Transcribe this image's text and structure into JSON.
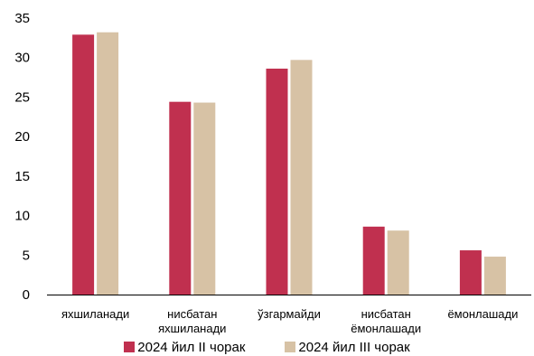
{
  "chart_data": {
    "type": "bar",
    "categories": [
      [
        "яхшиланади"
      ],
      [
        "нисбатан",
        "яхшиланади"
      ],
      [
        "ўзгармайди"
      ],
      [
        "нисбатан",
        "ёмонлашади"
      ],
      [
        "ёмонлашади"
      ]
    ],
    "series": [
      {
        "name": "2024 йил II чорак",
        "color": "#c0304f",
        "values": [
          32.9,
          24.4,
          28.6,
          8.6,
          5.6
        ]
      },
      {
        "name": "2024 йил III чорак",
        "color": "#d7c2a5",
        "values": [
          33.2,
          24.3,
          29.7,
          8.1,
          4.8
        ]
      }
    ],
    "ylim": [
      0,
      35
    ],
    "yticks": [
      0,
      5,
      10,
      15,
      20,
      25,
      30,
      35
    ],
    "grid": false,
    "legend_position": "bottom"
  }
}
